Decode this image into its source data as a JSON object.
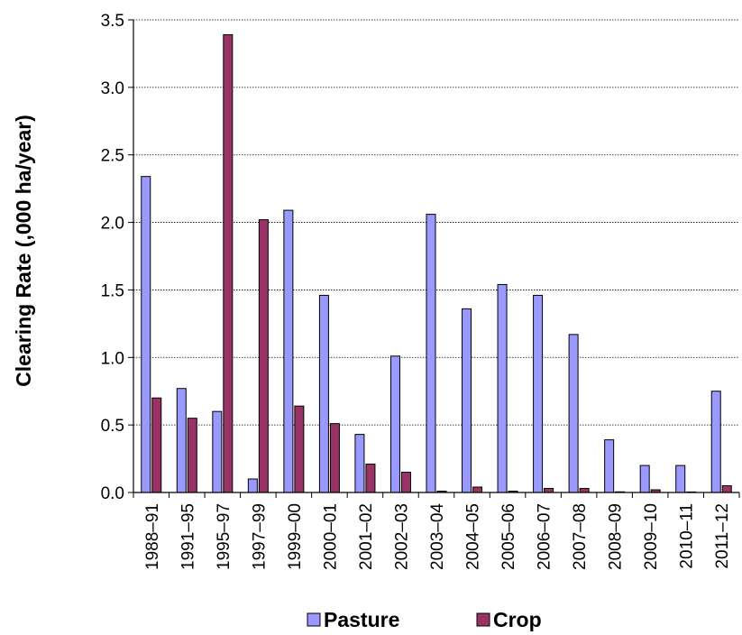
{
  "chart_data": {
    "type": "bar",
    "title": "",
    "xlabel": "",
    "ylabel": "Clearing Rate (,000 ha/year)",
    "ylim": [
      0,
      3.5
    ],
    "yticks": [
      "0.0",
      "0.5",
      "1.0",
      "1.5",
      "2.0",
      "2.5",
      "3.0",
      "3.5"
    ],
    "grid": "horizontal",
    "legend": "bottom",
    "categories": [
      "1988–91",
      "1991–95",
      "1995–97",
      "1997–99",
      "1999–00",
      "2000–01",
      "2001–02",
      "2002–03",
      "2003–04",
      "2004–05",
      "2005–06",
      "2006–07",
      "2007–08",
      "2008–09",
      "2009–10",
      "2010–11",
      "2011–12"
    ],
    "series": [
      {
        "name": "Pasture",
        "color": "#9999ff",
        "values": [
          2.34,
          0.77,
          0.6,
          0.1,
          2.09,
          1.46,
          0.43,
          1.01,
          2.06,
          1.36,
          1.54,
          1.46,
          1.17,
          0.39,
          0.2,
          0.2,
          0.75
        ]
      },
      {
        "name": "Crop",
        "color": "#993366",
        "values": [
          0.7,
          0.55,
          3.39,
          2.02,
          0.64,
          0.51,
          0.21,
          0.15,
          0.01,
          0.04,
          0.01,
          0.03,
          0.03,
          0.005,
          0.02,
          0.003,
          0.05
        ]
      }
    ]
  }
}
